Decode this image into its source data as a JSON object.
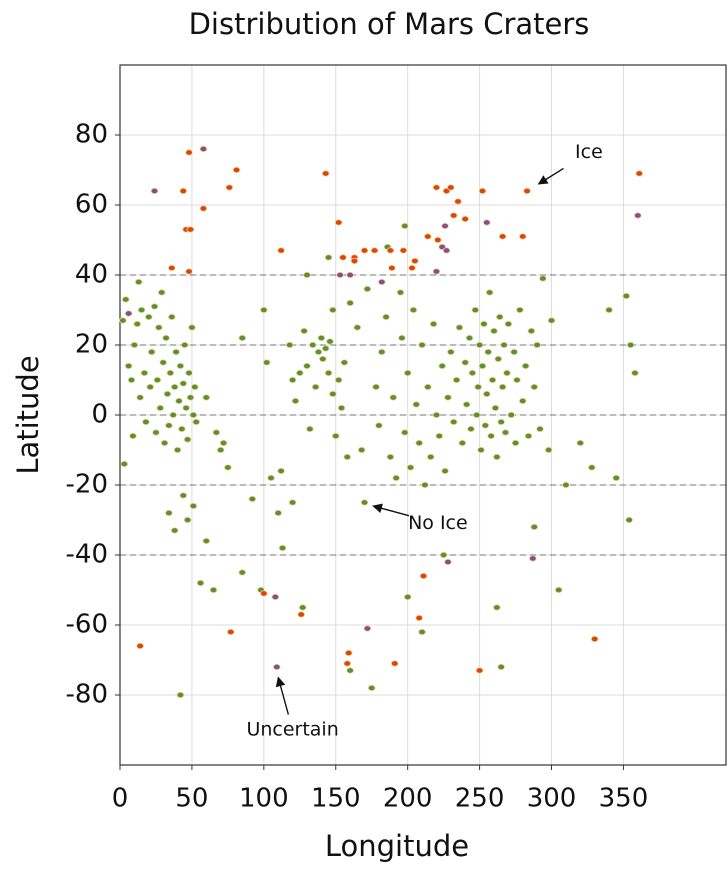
{
  "chart_data": {
    "type": "scatter",
    "title": "Distribution of Mars Craters",
    "x_label": "Longitude",
    "y_label": "Latitude",
    "xlim": [
      0,
      422
    ],
    "ylim": [
      -100,
      100
    ],
    "xticks": [
      0,
      50,
      100,
      150,
      200,
      250,
      300,
      350
    ],
    "yticks": [
      -80,
      -60,
      -40,
      -20,
      0,
      20,
      40,
      60,
      80
    ],
    "grid": true,
    "hlines": [
      -40,
      -20,
      0,
      20,
      40
    ],
    "hline_style": "dashed",
    "series": [
      {
        "name": "No Ice",
        "color": "#5f8f35",
        "points": [
          [
            2,
            27
          ],
          [
            4,
            33
          ],
          [
            6,
            14
          ],
          [
            8,
            10
          ],
          [
            10,
            20
          ],
          [
            12,
            26
          ],
          [
            14,
            5
          ],
          [
            15,
            30
          ],
          [
            17,
            12
          ],
          [
            18,
            -2
          ],
          [
            20,
            28
          ],
          [
            21,
            8
          ],
          [
            22,
            18
          ],
          [
            24,
            31
          ],
          [
            25,
            -5
          ],
          [
            26,
            10
          ],
          [
            27,
            25
          ],
          [
            28,
            2
          ],
          [
            30,
            15
          ],
          [
            31,
            -8
          ],
          [
            32,
            22
          ],
          [
            33,
            6
          ],
          [
            34,
            -3
          ],
          [
            35,
            12
          ],
          [
            36,
            28
          ],
          [
            37,
            0
          ],
          [
            38,
            8
          ],
          [
            39,
            18
          ],
          [
            40,
            -10
          ],
          [
            41,
            4
          ],
          [
            42,
            14
          ],
          [
            43,
            -4
          ],
          [
            44,
            9
          ],
          [
            45,
            20
          ],
          [
            46,
            2
          ],
          [
            47,
            -7
          ],
          [
            48,
            12
          ],
          [
            49,
            5
          ],
          [
            50,
            25
          ],
          [
            51,
            0
          ],
          [
            52,
            8
          ],
          [
            53,
            -2
          ],
          [
            3,
            -14
          ],
          [
            9,
            -6
          ],
          [
            13,
            38
          ],
          [
            29,
            35
          ],
          [
            34,
            -28
          ],
          [
            38,
            -33
          ],
          [
            44,
            -23
          ],
          [
            51,
            -26
          ],
          [
            47,
            -30
          ],
          [
            42,
            -80
          ],
          [
            56,
            -48
          ],
          [
            65,
            -50
          ],
          [
            60,
            -36
          ],
          [
            85,
            -45
          ],
          [
            67,
            -5
          ],
          [
            70,
            -10
          ],
          [
            75,
            -15
          ],
          [
            60,
            5
          ],
          [
            72,
            -8
          ],
          [
            85,
            22
          ],
          [
            92,
            -24
          ],
          [
            98,
            -50
          ],
          [
            100,
            30
          ],
          [
            102,
            15
          ],
          [
            105,
            -18
          ],
          [
            110,
            -28
          ],
          [
            113,
            -38
          ],
          [
            112,
            -16
          ],
          [
            118,
            20
          ],
          [
            120,
            10
          ],
          [
            122,
            4
          ],
          [
            125,
            12
          ],
          [
            128,
            24
          ],
          [
            130,
            14
          ],
          [
            132,
            -4
          ],
          [
            134,
            20
          ],
          [
            136,
            8
          ],
          [
            138,
            18
          ],
          [
            140,
            22
          ],
          [
            141,
            16
          ],
          [
            143,
            19
          ],
          [
            145,
            12
          ],
          [
            146,
            21
          ],
          [
            148,
            6
          ],
          [
            150,
            -6
          ],
          [
            152,
            10
          ],
          [
            154,
            2
          ],
          [
            156,
            15
          ],
          [
            158,
            -12
          ],
          [
            148,
            30
          ],
          [
            130,
            40
          ],
          [
            145,
            45
          ],
          [
            160,
            32
          ],
          [
            120,
            -25
          ],
          [
            127,
            -55
          ],
          [
            170,
            -25
          ],
          [
            175,
            -78
          ],
          [
            160,
            -73
          ],
          [
            168,
            -10
          ],
          [
            165,
            25
          ],
          [
            172,
            36
          ],
          [
            178,
            8
          ],
          [
            180,
            -3
          ],
          [
            182,
            18
          ],
          [
            185,
            28
          ],
          [
            188,
            -12
          ],
          [
            190,
            5
          ],
          [
            192,
            -18
          ],
          [
            195,
            35
          ],
          [
            196,
            22
          ],
          [
            198,
            -5
          ],
          [
            200,
            12
          ],
          [
            202,
            -15
          ],
          [
            204,
            30
          ],
          [
            206,
            3
          ],
          [
            208,
            -8
          ],
          [
            210,
            20
          ],
          [
            212,
            -20
          ],
          [
            214,
            8
          ],
          [
            216,
            -12
          ],
          [
            218,
            26
          ],
          [
            220,
            0
          ],
          [
            222,
            -6
          ],
          [
            224,
            14
          ],
          [
            226,
            -16
          ],
          [
            198,
            54
          ],
          [
            186,
            48
          ],
          [
            200,
            -52
          ],
          [
            210,
            -62
          ],
          [
            225,
            -40
          ],
          [
            228,
            5
          ],
          [
            230,
            18
          ],
          [
            232,
            -2
          ],
          [
            234,
            10
          ],
          [
            236,
            25
          ],
          [
            238,
            -8
          ],
          [
            240,
            15
          ],
          [
            241,
            3
          ],
          [
            243,
            22
          ],
          [
            244,
            -4
          ],
          [
            245,
            12
          ],
          [
            247,
            30
          ],
          [
            248,
            0
          ],
          [
            249,
            8
          ],
          [
            250,
            20
          ],
          [
            251,
            -10
          ],
          [
            252,
            14
          ],
          [
            253,
            26
          ],
          [
            254,
            -3
          ],
          [
            255,
            6
          ],
          [
            256,
            18
          ],
          [
            257,
            35
          ],
          [
            258,
            -6
          ],
          [
            259,
            10
          ],
          [
            260,
            24
          ],
          [
            261,
            2
          ],
          [
            262,
            -12
          ],
          [
            263,
            16
          ],
          [
            264,
            28
          ],
          [
            265,
            -2
          ],
          [
            266,
            8
          ],
          [
            267,
            20
          ],
          [
            268,
            -5
          ],
          [
            269,
            12
          ],
          [
            270,
            26
          ],
          [
            272,
            0
          ],
          [
            274,
            18
          ],
          [
            275,
            -8
          ],
          [
            276,
            10
          ],
          [
            278,
            30
          ],
          [
            280,
            4
          ],
          [
            282,
            14
          ],
          [
            284,
            -6
          ],
          [
            286,
            24
          ],
          [
            288,
            8
          ],
          [
            290,
            20
          ],
          [
            292,
            -4
          ],
          [
            294,
            39
          ],
          [
            298,
            -10
          ],
          [
            262,
            -55
          ],
          [
            265,
            -72
          ],
          [
            288,
            -32
          ],
          [
            300,
            27
          ],
          [
            305,
            -50
          ],
          [
            310,
            -20
          ],
          [
            320,
            -8
          ],
          [
            328,
            -15
          ],
          [
            340,
            30
          ],
          [
            345,
            -18
          ],
          [
            352,
            34
          ],
          [
            355,
            20
          ],
          [
            354,
            -30
          ],
          [
            358,
            12
          ]
        ]
      },
      {
        "name": "Ice",
        "color": "#e2430e",
        "points": [
          [
            14,
            -66
          ],
          [
            36,
            42
          ],
          [
            44,
            64
          ],
          [
            46,
            53
          ],
          [
            49,
            53
          ],
          [
            48,
            75
          ],
          [
            48,
            41
          ],
          [
            58,
            59
          ],
          [
            76,
            65
          ],
          [
            81,
            70
          ],
          [
            77,
            -62
          ],
          [
            100,
            -51
          ],
          [
            112,
            47
          ],
          [
            126,
            -57
          ],
          [
            143,
            69
          ],
          [
            152,
            55
          ],
          [
            155,
            45
          ],
          [
            159,
            -68
          ],
          [
            158,
            -71
          ],
          [
            163,
            45
          ],
          [
            163,
            44
          ],
          [
            170,
            47
          ],
          [
            177,
            47
          ],
          [
            188,
            47
          ],
          [
            189,
            42
          ],
          [
            191,
            -71
          ],
          [
            197,
            47
          ],
          [
            203,
            42
          ],
          [
            205,
            44
          ],
          [
            208,
            -58
          ],
          [
            211,
            -46
          ],
          [
            214,
            51
          ],
          [
            220,
            65
          ],
          [
            221,
            50
          ],
          [
            227,
            64
          ],
          [
            230,
            65
          ],
          [
            232,
            57
          ],
          [
            235,
            61
          ],
          [
            240,
            56
          ],
          [
            250,
            -73
          ],
          [
            252,
            64
          ],
          [
            266,
            51
          ],
          [
            280,
            51
          ],
          [
            283,
            64
          ],
          [
            330,
            -64
          ],
          [
            361,
            69
          ]
        ]
      },
      {
        "name": "Uncertain",
        "color": "#8e4a8e",
        "points": [
          [
            6,
            29
          ],
          [
            24,
            64
          ],
          [
            58,
            76
          ],
          [
            108,
            -52
          ],
          [
            109,
            -72
          ],
          [
            153,
            40
          ],
          [
            160,
            40
          ],
          [
            172,
            -61
          ],
          [
            182,
            38
          ],
          [
            220,
            41
          ],
          [
            224,
            48
          ],
          [
            227,
            47
          ],
          [
            226,
            54
          ],
          [
            228,
            -42
          ],
          [
            255,
            55
          ],
          [
            287,
            -41
          ],
          [
            360,
            57
          ]
        ]
      }
    ],
    "annotations": [
      {
        "series": 1,
        "xy": [
          291,
          66
        ],
        "xytext": [
          326,
          75
        ]
      },
      {
        "series": 0,
        "xy": [
          176,
          -26
        ],
        "xytext": [
          221,
          -31
        ]
      },
      {
        "series": 2,
        "xy": [
          110,
          -75
        ],
        "xytext": [
          120,
          -90
        ]
      }
    ]
  }
}
